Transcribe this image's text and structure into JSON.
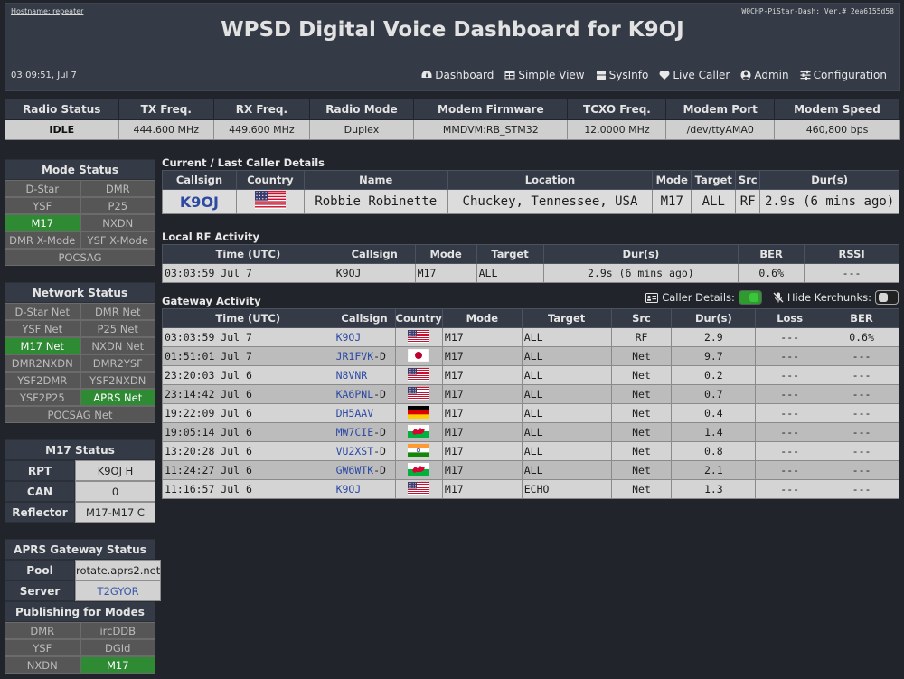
{
  "header": {
    "hostname": "Hostname: repeater",
    "version": "W0CHP-PiStar-Dash: Ver.# 2ea6155d58",
    "title": "WPSD Digital Voice Dashboard for K9OJ",
    "clock": "03:09:51, Jul 7",
    "nav": [
      {
        "label": "Dashboard",
        "icon": "dashboard-icon"
      },
      {
        "label": "Simple View",
        "icon": "table-icon"
      },
      {
        "label": "SysInfo",
        "icon": "server-icon"
      },
      {
        "label": "Live Caller",
        "icon": "heartbeat-icon"
      },
      {
        "label": "Admin",
        "icon": "user-icon"
      },
      {
        "label": "Configuration",
        "icon": "sliders-icon"
      }
    ]
  },
  "radio": {
    "headers": [
      "Radio Status",
      "TX Freq.",
      "RX Freq.",
      "Radio Mode",
      "Modem Firmware",
      "TCXO Freq.",
      "Modem Port",
      "Modem Speed"
    ],
    "values": [
      "IDLE",
      "444.600 MHz",
      "449.600 MHz",
      "Duplex",
      "MMDVM:RB_STM32",
      "12.0000 MHz",
      "/dev/ttyAMA0",
      "460,800 bps"
    ]
  },
  "mode_status": {
    "title": "Mode Status",
    "items": [
      {
        "label": "D-Star",
        "on": false
      },
      {
        "label": "DMR",
        "on": false
      },
      {
        "label": "YSF",
        "on": false
      },
      {
        "label": "P25",
        "on": false
      },
      {
        "label": "M17",
        "on": true
      },
      {
        "label": "NXDN",
        "on": false
      },
      {
        "label": "DMR X-Mode",
        "on": false
      },
      {
        "label": "YSF X-Mode",
        "on": false
      }
    ],
    "full": {
      "label": "POCSAG",
      "on": false
    }
  },
  "network_status": {
    "title": "Network Status",
    "items": [
      {
        "label": "D-Star Net",
        "on": false
      },
      {
        "label": "DMR Net",
        "on": false
      },
      {
        "label": "YSF Net",
        "on": false
      },
      {
        "label": "P25 Net",
        "on": false
      },
      {
        "label": "M17 Net",
        "on": true
      },
      {
        "label": "NXDN Net",
        "on": false
      },
      {
        "label": "DMR2NXDN",
        "on": false
      },
      {
        "label": "DMR2YSF",
        "on": false
      },
      {
        "label": "YSF2DMR",
        "on": false
      },
      {
        "label": "YSF2NXDN",
        "on": false
      },
      {
        "label": "YSF2P25",
        "on": false
      },
      {
        "label": "APRS Net",
        "on": true
      }
    ],
    "full": {
      "label": "POCSAG Net",
      "on": false
    }
  },
  "m17_status": {
    "title": "M17 Status",
    "rows": [
      {
        "k": "RPT",
        "v": "K9OJ  H"
      },
      {
        "k": "CAN",
        "v": "0"
      },
      {
        "k": "Reflector",
        "v": "M17-M17 C"
      }
    ]
  },
  "aprs": {
    "title": "APRS Gateway Status",
    "rows": [
      {
        "k": "Pool",
        "v": "rotate.aprs2.net"
      },
      {
        "k": "Server",
        "v": "T2GYOR"
      }
    ],
    "publishing_title": "Publishing for Modes",
    "publishing": [
      {
        "label": "DMR",
        "on": false
      },
      {
        "label": "ircDDB",
        "on": false
      },
      {
        "label": "YSF",
        "on": false
      },
      {
        "label": "DGId",
        "on": false
      },
      {
        "label": "NXDN",
        "on": false
      },
      {
        "label": "M17",
        "on": true
      }
    ]
  },
  "current_caller": {
    "title": "Current / Last Caller Details",
    "headers": [
      "Callsign",
      "Country",
      "Name",
      "Location",
      "Mode",
      "Target",
      "Src",
      "Dur(s)"
    ],
    "callsign": "K9OJ",
    "flag": "us",
    "name": "Robbie Robinette",
    "location": "Chuckey, Tennessee, USA",
    "mode": "M17",
    "target": "ALL",
    "src": "RF",
    "dur": "2.9s (6 mins ago)"
  },
  "local_rf": {
    "title": "Local RF Activity",
    "headers": [
      "Time (UTC)",
      "Callsign",
      "Mode",
      "Target",
      "Dur(s)",
      "BER",
      "RSSI"
    ],
    "rows": [
      {
        "time": "03:03:59 Jul 7",
        "callsign": "K9OJ",
        "mode": "M17",
        "target": "ALL",
        "dur": "2.9s (6 mins ago)",
        "ber": "0.6%",
        "rssi": "---"
      }
    ]
  },
  "gateway": {
    "title": "Gateway Activity",
    "caller_details_label": "Caller Details:",
    "hide_kerchunks_label": "Hide Kerchunks:",
    "headers": [
      "Time (UTC)",
      "Callsign",
      "Country",
      "Mode",
      "Target",
      "Src",
      "Dur(s)",
      "Loss",
      "BER"
    ],
    "rows": [
      {
        "time": "03:03:59 Jul 7",
        "call": "K9OJ",
        "suffix": "",
        "flag": "us",
        "mode": "M17",
        "target": "ALL",
        "src": "RF",
        "dur": "2.9",
        "loss": "---",
        "ber": "0.6%"
      },
      {
        "time": "01:51:01 Jul 7",
        "call": "JR1FVK",
        "suffix": "-D",
        "flag": "jp",
        "mode": "M17",
        "target": "ALL",
        "src": "Net",
        "dur": "9.7",
        "loss": "---",
        "ber": "---"
      },
      {
        "time": "23:20:03 Jul 6",
        "call": "N8VNR",
        "suffix": "",
        "flag": "us",
        "mode": "M17",
        "target": "ALL",
        "src": "Net",
        "dur": "0.2",
        "loss": "---",
        "ber": "---"
      },
      {
        "time": "23:14:42 Jul 6",
        "call": "KA6PNL",
        "suffix": "-D",
        "flag": "us",
        "mode": "M17",
        "target": "ALL",
        "src": "Net",
        "dur": "0.7",
        "loss": "---",
        "ber": "---"
      },
      {
        "time": "19:22:09 Jul 6",
        "call": "DH5AAV",
        "suffix": "",
        "flag": "de",
        "mode": "M17",
        "target": "ALL",
        "src": "Net",
        "dur": "0.4",
        "loss": "---",
        "ber": "---"
      },
      {
        "time": "19:05:14 Jul 6",
        "call": "MW7CIE",
        "suffix": "-D",
        "flag": "wales",
        "mode": "M17",
        "target": "ALL",
        "src": "Net",
        "dur": "1.4",
        "loss": "---",
        "ber": "---"
      },
      {
        "time": "13:20:28 Jul 6",
        "call": "VU2XST",
        "suffix": "-D",
        "flag": "in",
        "mode": "M17",
        "target": "ALL",
        "src": "Net",
        "dur": "0.8",
        "loss": "---",
        "ber": "---"
      },
      {
        "time": "11:24:27 Jul 6",
        "call": "GW6WTK",
        "suffix": "-D",
        "flag": "wales",
        "mode": "M17",
        "target": "ALL",
        "src": "Net",
        "dur": "2.1",
        "loss": "---",
        "ber": "---"
      },
      {
        "time": "11:16:57 Jul 6",
        "call": "K9OJ",
        "suffix": "",
        "flag": "us",
        "mode": "M17",
        "target": "ECHO",
        "src": "Net",
        "dur": "1.3",
        "loss": "---",
        "ber": "---"
      }
    ]
  },
  "colors": {
    "bg": "#21252b",
    "panel": "#343b46",
    "active_green": "#2e8a33",
    "inactive": "#565656",
    "link_blue": "#2d4aa5",
    "rf_red": "#c8402f"
  }
}
